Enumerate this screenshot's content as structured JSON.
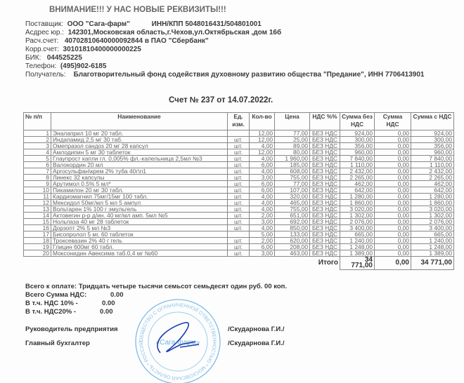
{
  "notice": "ВНИМАНИЕ!!! У НАС НОВЫЕ РЕКВИЗИТЫ!!!",
  "supplier": {
    "label": "Поставщик:",
    "value": "ООО \"Сага-фарм\"",
    "inn": "ИНН/КПП 5048016431/504801001"
  },
  "address": {
    "label": "Асдрес юр.:",
    "value": "142301,Московская область,г.Чехов,ул.Октябрьская ,дом 16б"
  },
  "account": {
    "label": "Расч.счет:",
    "value": "40702810640000092844 в ПАО \"Сбербанк\""
  },
  "corr": {
    "label": "Корр.счет:",
    "value": "30101810400000000225"
  },
  "bik": {
    "label": "БИК:",
    "value": "044525225"
  },
  "phone": {
    "label": "Телефон:",
    "value": "(495)902-6185"
  },
  "recipient": {
    "label": "Получатель:",
    "value": "Благотворительный фонд содействия духовному развитию общества  \"Предание\", ИНН 7706413901"
  },
  "invoice_title": "Счет № 237  от 14.07.2022г.",
  "table": {
    "headers": [
      "№ п/п",
      "Наименование",
      "Ед. изм.",
      "Кол-во",
      "Цена",
      "НДС %%",
      "Сумма без НДС",
      "Сумма НДС",
      "Сумма с НДС"
    ],
    "rows": [
      [
        "1",
        "Эналаприл 10 мг 20 табл.",
        "",
        "12,00",
        "77,00",
        "БЕЗ НДС",
        "924,00",
        "0,00",
        "924,00"
      ],
      [
        "2",
        "Индапамид 2,5 мг 30 таб.",
        "шт.",
        "12,00",
        "25,00",
        "БЕЗ НДС",
        "300,00",
        "0,00",
        "300,00"
      ],
      [
        "3",
        "Омепразол сандоз 20 мг 28 капсул",
        "шт.",
        "4,00",
        "89,00",
        "БЕЗ НДС",
        "356,00",
        "0,00",
        "356,00"
      ],
      [
        "4",
        "Амлодипин 5 мг 30 таблеток",
        "шт.",
        "12,00",
        "80,00",
        "БЕЗ НДС",
        "960,00",
        "0,00",
        "960,00"
      ],
      [
        "5",
        "Глаупрост капли гл. 0,005% фл.-капельница 2,5мл №3",
        "шт.",
        "4,00",
        "1 960,00",
        "БЕЗ НДС",
        "7 840,00",
        "0,00",
        "7 840,00"
      ],
      [
        "6",
        "Валокордин 20 мл",
        "шт.",
        "6,00",
        "185,00",
        "БЕЗ НДС",
        "1 110,00",
        "0,00",
        "1 110,00"
      ],
      [
        "7",
        "Аргосульфан\\крем 2% туба 40г\\п1",
        "шт.",
        "4,00",
        "608,00",
        "БЕЗ НДС",
        "2 432,00",
        "0,00",
        "2 432,00"
      ],
      [
        "8",
        "Линекс 32 капсулы",
        "шт.",
        "3,00",
        "755,00",
        "БЕЗ НДС",
        "2 265,00",
        "0,00",
        "2 265,00"
      ],
      [
        "9",
        "Арутимол 0.5% 5 мл*",
        "шт.",
        "6,00",
        "77,00",
        "БЕЗ НДС",
        "462,00",
        "0,00",
        "462,00"
      ],
      [
        "10",
        "Пикамилон 20 мг 30 табл.",
        "шт.",
        "6,00",
        "107,00",
        "БЕЗ НДС",
        "642,00",
        "0,00",
        "642,00"
      ],
      [
        "11",
        "Кардиомагнил 75мг/15мг 100 табл.",
        "шт.",
        "4,00",
        "320,00",
        "БЕЗ НДС",
        "1 280,00",
        "0,00",
        "1 280,00"
      ],
      [
        "12",
        "Мексидол  50мг/мл  5 мл 5 ампул",
        "шт.",
        "4,00",
        "465,00",
        "БЕЗ НДС",
        "1 860,00",
        "0,00",
        "1 860,00"
      ],
      [
        "13",
        "Вольтарен 1% 100 г эмульгель",
        "шт.",
        "4,00",
        "755,00",
        "БЕЗ НДС",
        "3 020,00",
        "0,00",
        "3 020,00"
      ],
      [
        "14",
        "Актовегин р-р д/ин. 40 мг/мл амп. 5мл №5",
        "шт.",
        "2,00",
        "651,00",
        "БЕЗ НДС",
        "1 302,00",
        "0,00",
        "1 302,00"
      ],
      [
        "15",
        "Нольпаза 40 мг 28 таблеток",
        "шт.",
        "3,00",
        "692,00",
        "БЕЗ НДС",
        "2 076,00",
        "0,00",
        "2 076,00"
      ],
      [
        "16",
        "Дорзопт 2%  5 мл №3",
        "шт.",
        "4,00",
        "850,00",
        "БЕЗ НДС",
        "3 400,00",
        "0,00",
        "3 400,00"
      ],
      [
        "17",
        "Бисопролол 5 мг. 60 таблеток",
        "",
        "5,00",
        "133,00",
        "БЕЗ НДС",
        "665,00",
        "0,00",
        "665,00"
      ],
      [
        "18",
        "Троксевазин 2% 40 г гель",
        "шт.",
        "2,00",
        "620,00",
        "БЕЗ НДС",
        "1 240,00",
        "0,00",
        "1 240,00"
      ],
      [
        "19",
        "Глицин 600мг 60 табл.",
        "шт.",
        "6,00",
        "208,00",
        "БЕЗ НДС",
        "1 248,00",
        "0,00",
        "1 248,00"
      ],
      [
        "20",
        "Моксонидин  Авексима таб.0,4 мг №60",
        "шт.",
        "3,00",
        "463,00",
        "БЕЗ НДС",
        "1 389,00",
        "0,00",
        "1 389,00"
      ]
    ],
    "total_label": "Итого",
    "total_net": "34 771,00",
    "total_vat": "0,00",
    "total_gross": "34 771,00"
  },
  "footer": {
    "total_words": "Всего к оплате: Тридцать четыре тысячи семьсот семьдесят один руб. 00 коп.",
    "vat_total_label": "Всего Сумма НДС:",
    "vat_total": "0.00",
    "vat10_label": "В т.ч. НДС 10% -",
    "vat10": "0.00",
    "vat20_label": "В т.ч. НДС20% -",
    "vat20": "0.00",
    "director_label": "Руководитель предприятия",
    "director_name": "/Скударнова Г.И./",
    "accountant_label": "Главный бухгалтер",
    "accountant_name": "/Скударнова Г.И./"
  },
  "stamp": {
    "text": "«Сага-фарм»",
    "ring": "ОБЩЕСТВО С ОГРАНИЧЕННОЙ ОТВЕТСТВЕННОСТЬЮ * МОСКОВСКАЯ ОБЛАСТЬ * РОССИЙСКАЯ ФЕДЕРАЦИЯ * ОГРН",
    "color": "#6fb3e0",
    "signature_color": "#1a3fb5"
  }
}
